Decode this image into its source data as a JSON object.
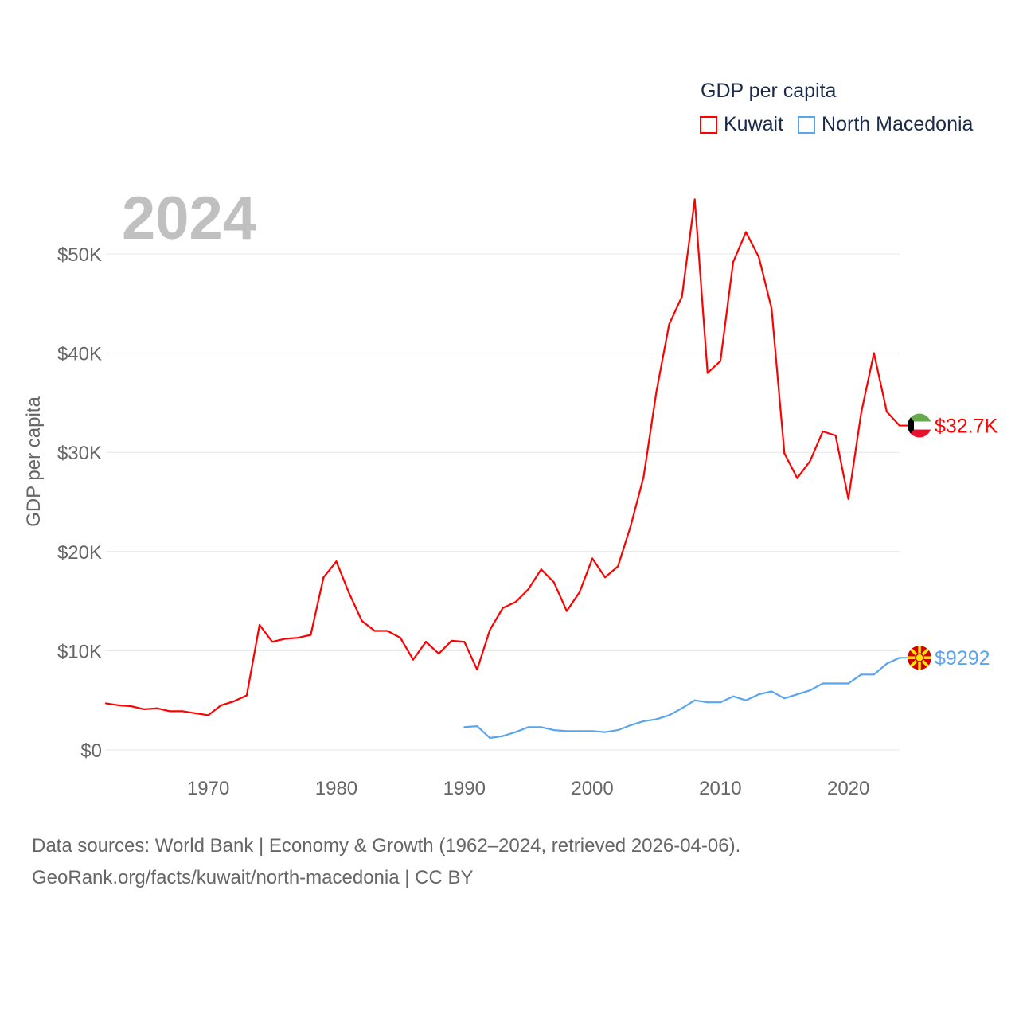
{
  "chart_data": {
    "type": "line",
    "title": "GDP per capita",
    "year_label": "2024",
    "ylabel": "GDP per capita",
    "xlabel": "",
    "xlim": [
      1962,
      2024
    ],
    "ylim": [
      0,
      50000
    ],
    "x_ticks": [
      1970,
      1980,
      1990,
      2000,
      2010,
      2020
    ],
    "x_tick_labels": [
      "1970",
      "1980",
      "1990",
      "2000",
      "2010",
      "2020"
    ],
    "y_ticks": [
      0,
      10000,
      20000,
      30000,
      40000,
      50000
    ],
    "y_tick_labels": [
      "$0",
      "$10K",
      "$20K",
      "$30K",
      "$40K",
      "$50K"
    ],
    "grid": true,
    "legend_position": "top-right",
    "series": [
      {
        "name": "Kuwait",
        "color": "#ff0000",
        "end_label": "$32.7K",
        "x_start": 1962,
        "values": [
          4700,
          4500,
          4400,
          4100,
          4200,
          3900,
          3900,
          3700,
          3500,
          4500,
          4900,
          5500,
          12600,
          10900,
          11200,
          11300,
          11600,
          17400,
          19000,
          15800,
          13000,
          12000,
          12000,
          11300,
          9100,
          10900,
          9700,
          11000,
          10900,
          8100,
          12100,
          14300,
          14900,
          16200,
          18200,
          16900,
          14000,
          15900,
          19300,
          17400,
          18500,
          22600,
          27500,
          36100,
          42900,
          45700,
          55500,
          38000,
          39200,
          49200,
          52200,
          49700,
          44500,
          29900,
          27400,
          29100,
          32100,
          31700,
          25300,
          34000,
          40000,
          34100,
          32700
        ]
      },
      {
        "name": "North Macedonia",
        "color": "#5aa5f0",
        "end_label": "$9292",
        "x_start": 1990,
        "values": [
          2300,
          2400,
          1200,
          1400,
          1800,
          2300,
          2300,
          2000,
          1900,
          1900,
          1900,
          1800,
          2000,
          2500,
          2900,
          3100,
          3500,
          4200,
          5000,
          4800,
          4800,
          5400,
          5000,
          5600,
          5900,
          5200,
          5600,
          6000,
          6700,
          6700,
          6700,
          7600,
          7600,
          8700,
          9292
        ]
      }
    ]
  },
  "footer": {
    "line1": "Data sources: World Bank | Economy & Growth (1962–2024, retrieved 2026-04-06).",
    "line2": "GeoRank.org/facts/kuwait/north-macedonia | CC BY"
  }
}
